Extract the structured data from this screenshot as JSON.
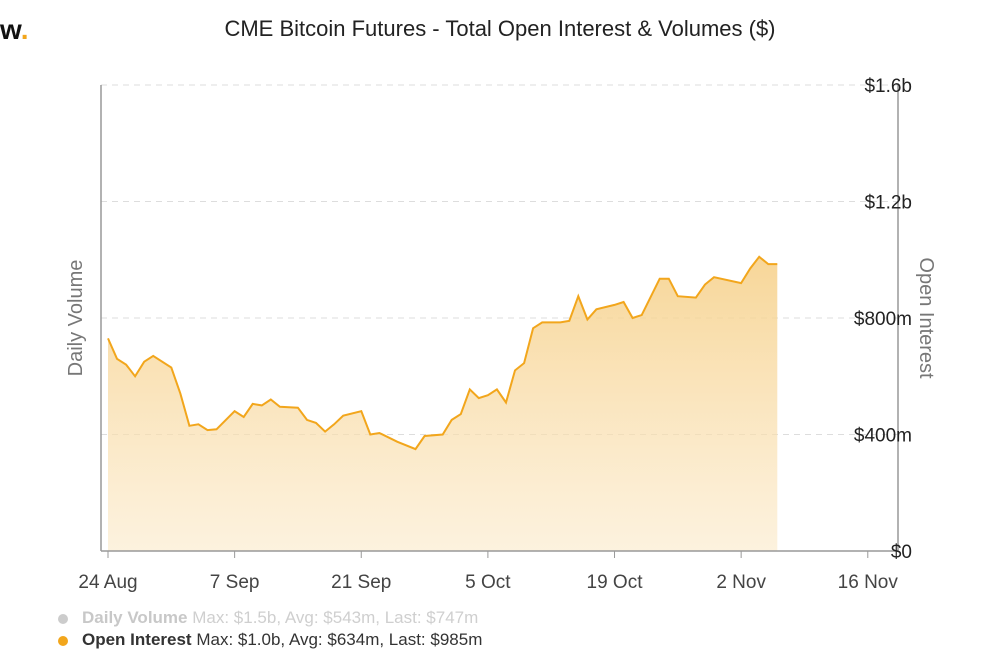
{
  "brand": {
    "letter": "w",
    "dot": "."
  },
  "chart_data": {
    "type": "area",
    "title": "CME Bitcoin Futures - Total Open Interest & Volumes ($)",
    "ylabel_left": "Daily Volume",
    "ylabel_right": "Open Interest",
    "right_axis": {
      "ylim": [
        0,
        1600000000
      ],
      "ticks": [
        {
          "value": 0,
          "label": "$0"
        },
        {
          "value": 400000000,
          "label": "$400m"
        },
        {
          "value": 800000000,
          "label": "$800m"
        },
        {
          "value": 1200000000,
          "label": "$1.2b"
        },
        {
          "value": 1600000000,
          "label": "$1.6b"
        }
      ]
    },
    "x_ticks": [
      {
        "date": "2020-08-24",
        "label": "24 Aug"
      },
      {
        "date": "2020-09-07",
        "label": "7 Sep"
      },
      {
        "date": "2020-09-21",
        "label": "21 Sep"
      },
      {
        "date": "2020-10-05",
        "label": "5 Oct"
      },
      {
        "date": "2020-10-19",
        "label": "19 Oct"
      },
      {
        "date": "2020-11-02",
        "label": "2 Nov"
      },
      {
        "date": "2020-11-16",
        "label": "16 Nov"
      }
    ],
    "xlim": [
      "2020-08-24",
      "2020-11-20"
    ],
    "grid": true,
    "colors": {
      "open_interest": "#f2a61c",
      "daily_volume": "#cccccc"
    },
    "series": [
      {
        "name": "Open Interest",
        "points": [
          [
            "2020-08-24",
            730000000
          ],
          [
            "2020-08-25",
            660000000
          ],
          [
            "2020-08-26",
            640000000
          ],
          [
            "2020-08-27",
            600000000
          ],
          [
            "2020-08-28",
            650000000
          ],
          [
            "2020-08-29",
            670000000
          ],
          [
            "2020-08-31",
            630000000
          ],
          [
            "2020-09-01",
            540000000
          ],
          [
            "2020-09-02",
            430000000
          ],
          [
            "2020-09-03",
            435000000
          ],
          [
            "2020-09-04",
            415000000
          ],
          [
            "2020-09-05",
            418000000
          ],
          [
            "2020-09-07",
            480000000
          ],
          [
            "2020-09-08",
            460000000
          ],
          [
            "2020-09-09",
            505000000
          ],
          [
            "2020-09-10",
            500000000
          ],
          [
            "2020-09-11",
            520000000
          ],
          [
            "2020-09-12",
            495000000
          ],
          [
            "2020-09-14",
            492000000
          ],
          [
            "2020-09-15",
            450000000
          ],
          [
            "2020-09-16",
            440000000
          ],
          [
            "2020-09-17",
            410000000
          ],
          [
            "2020-09-18",
            435000000
          ],
          [
            "2020-09-19",
            465000000
          ],
          [
            "2020-09-21",
            480000000
          ],
          [
            "2020-09-22",
            400000000
          ],
          [
            "2020-09-23",
            405000000
          ],
          [
            "2020-09-25",
            375000000
          ],
          [
            "2020-09-27",
            350000000
          ],
          [
            "2020-09-28",
            395000000
          ],
          [
            "2020-09-30",
            400000000
          ],
          [
            "2020-10-01",
            450000000
          ],
          [
            "2020-10-02",
            470000000
          ],
          [
            "2020-10-03",
            555000000
          ],
          [
            "2020-10-04",
            525000000
          ],
          [
            "2020-10-05",
            535000000
          ],
          [
            "2020-10-06",
            555000000
          ],
          [
            "2020-10-07",
            510000000
          ],
          [
            "2020-10-08",
            620000000
          ],
          [
            "2020-10-09",
            645000000
          ],
          [
            "2020-10-10",
            765000000
          ],
          [
            "2020-10-11",
            785000000
          ],
          [
            "2020-10-13",
            785000000
          ],
          [
            "2020-10-14",
            790000000
          ],
          [
            "2020-10-15",
            875000000
          ],
          [
            "2020-10-16",
            795000000
          ],
          [
            "2020-10-17",
            830000000
          ],
          [
            "2020-10-19",
            845000000
          ],
          [
            "2020-10-20",
            855000000
          ],
          [
            "2020-10-21",
            800000000
          ],
          [
            "2020-10-22",
            810000000
          ],
          [
            "2020-10-24",
            935000000
          ],
          [
            "2020-10-25",
            935000000
          ],
          [
            "2020-10-26",
            875000000
          ],
          [
            "2020-10-28",
            870000000
          ],
          [
            "2020-10-29",
            915000000
          ],
          [
            "2020-10-30",
            940000000
          ],
          [
            "2020-11-02",
            920000000
          ],
          [
            "2020-11-03",
            970000000
          ],
          [
            "2020-11-04",
            1010000000
          ],
          [
            "2020-11-05",
            985000000
          ],
          [
            "2020-11-06",
            985000000
          ]
        ]
      }
    ],
    "legend": [
      {
        "name": "Daily Volume",
        "stats": "Max: $1.5b, Avg: $543m, Last: $747m",
        "active": false
      },
      {
        "name": "Open Interest",
        "stats": "Max: $1.0b, Avg: $634m, Last: $985m",
        "active": true
      }
    ]
  }
}
